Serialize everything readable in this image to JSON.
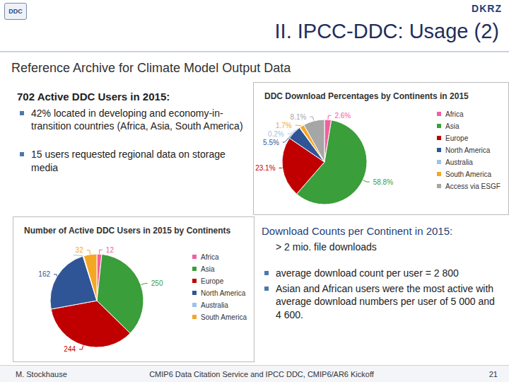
{
  "header": {
    "logo_left": "DDC",
    "logo_right": "DKRZ",
    "title": "II. IPCC-DDC: Usage (2)",
    "subtitle": "Reference Archive for Climate Model Output Data"
  },
  "left_text": {
    "heading": "702 Active DDC Users in 2015:",
    "bullets": [
      "42% located in developing and economy-in-transition countries (Africa, Asia, South America)",
      "15 users requested regional data on storage media"
    ]
  },
  "right_text": {
    "heading": "Download Counts per Continent in 2015:",
    "line": "> 2 mio. file downloads",
    "bullets": [
      "average download count per user = 2 800",
      "Asian and African users were the most active with average download numbers per user of 5 000 and 4 600."
    ]
  },
  "footer": {
    "author": "M. Stockhause",
    "event": "CMIP6 Data Citation Service and IPCC DDC, CMIP6/AR6 Kickoff",
    "page": "21"
  },
  "chart_data": [
    {
      "type": "pie",
      "title": "DDC Download Percentages by Continents in 2015",
      "categories": [
        "Africa",
        "Asia",
        "Europe",
        "North America",
        "Australia",
        "South America",
        "Access via ESGF"
      ],
      "values": [
        2.6,
        58.8,
        23.1,
        5.5,
        0.2,
        1.7,
        8.1
      ],
      "value_labels": [
        "2.6%",
        "58.8%",
        "23.1%",
        "5.5%",
        "0.2%",
        "1.7%",
        "8.1%"
      ],
      "colors": [
        "#f0609e",
        "#3a9e3a",
        "#c00000",
        "#2f5597",
        "#9dc3e6",
        "#f5a623",
        "#a6a6a6"
      ],
      "data_labels": true,
      "legend": "right"
    },
    {
      "type": "pie",
      "title": "Number of Active DDC Users in 2015 by Continents",
      "categories": [
        "Africa",
        "Asia",
        "Europe",
        "North America",
        "Australia",
        "South America"
      ],
      "values": [
        12,
        250,
        244,
        162,
        2,
        32
      ],
      "value_labels": [
        "12",
        "250",
        "244",
        "162",
        null,
        "32"
      ],
      "colors": [
        "#f0609e",
        "#3a9e3a",
        "#c00000",
        "#2f5597",
        "#9dc3e6",
        "#f5a623"
      ],
      "data_labels": true,
      "legend": "right"
    }
  ]
}
